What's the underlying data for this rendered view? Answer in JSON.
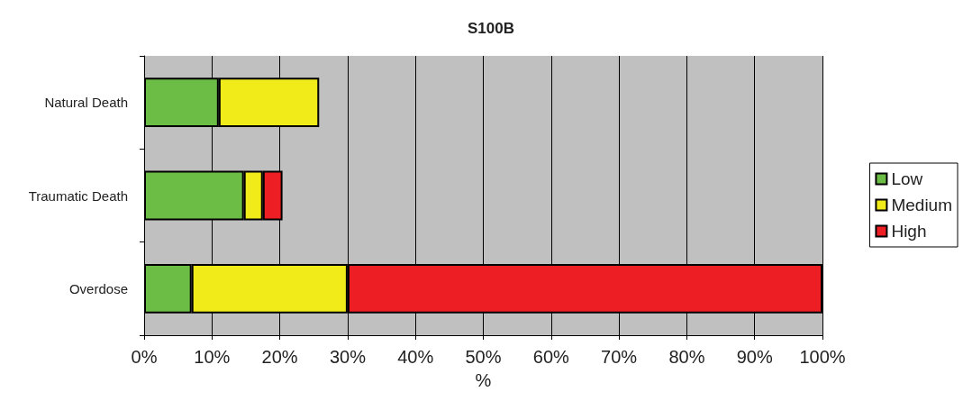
{
  "chart_data": {
    "type": "bar",
    "title": "S100B",
    "xlabel": "%",
    "orientation": "horizontal",
    "stacked": true,
    "categories": [
      "Natural Death",
      "Traumatic Death",
      "Overdose"
    ],
    "series": [
      {
        "name": "Low",
        "color": "#6cbd45",
        "values": [
          11,
          14.7,
          7
        ]
      },
      {
        "name": "Medium",
        "color": "#f2eb1a",
        "values": [
          14.8,
          2.8,
          23
        ]
      },
      {
        "name": "High",
        "color": "#ee1f24",
        "values": [
          null,
          2.9,
          70
        ]
      }
    ],
    "xlim": [
      0,
      100
    ],
    "xticks": [
      {
        "value": 0,
        "label": "0%"
      },
      {
        "value": 10,
        "label": "10%"
      },
      {
        "value": 20,
        "label": "20%"
      },
      {
        "value": 30,
        "label": "30%"
      },
      {
        "value": 40,
        "label": "40%"
      },
      {
        "value": 50,
        "label": "50%"
      },
      {
        "value": 60,
        "label": "60%"
      },
      {
        "value": 70,
        "label": "70%"
      },
      {
        "value": 80,
        "label": "80%"
      },
      {
        "value": 90,
        "label": "90%"
      },
      {
        "value": 100,
        "label": "100%"
      }
    ],
    "grid": "x",
    "legend": "right"
  }
}
